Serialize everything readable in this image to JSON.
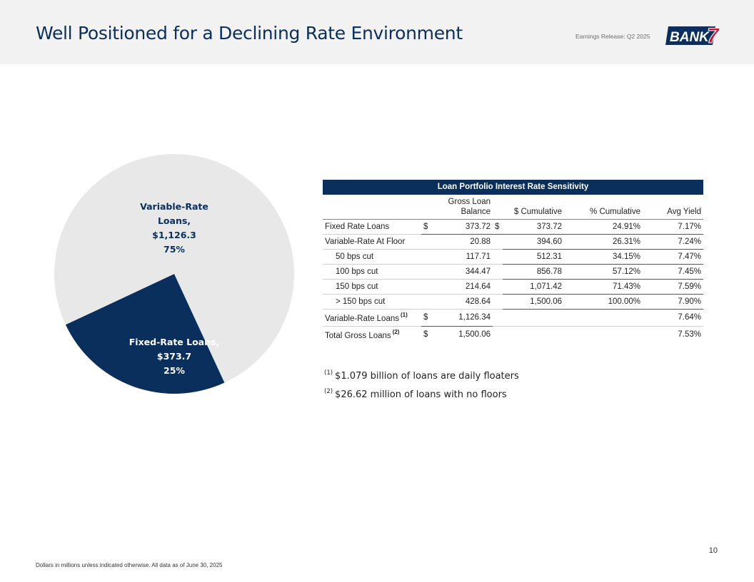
{
  "header": {
    "title": "Well Positioned for a Declining Rate Environment",
    "release": "Earnings Release: Q2 2025",
    "logo_text": "BANK",
    "logo_mark": "7",
    "brand_color": "#0a2f5c"
  },
  "chart_data": {
    "type": "pie",
    "slices": [
      {
        "name": "Variable-Rate Loans",
        "value": 1126.3,
        "percent": 75,
        "label_lines": [
          "Variable-Rate",
          "Loans,",
          "$1,126.3",
          "75%"
        ],
        "color": "#e8e8e8"
      },
      {
        "name": "Fixed-Rate Loans",
        "value": 373.7,
        "percent": 25,
        "label_lines": [
          "Fixed-Rate Loans,",
          "$373.7",
          "25%"
        ],
        "color": "#0a2f5c"
      }
    ]
  },
  "table": {
    "title": "Loan Portfolio Interest Rate Sensitivity",
    "columns": {
      "balance_line1": "Gross Loan",
      "balance_line2": "Balance",
      "cumulative": "$ Cumulative",
      "pct_cumulative": "% Cumulative",
      "avg_yield": "Avg Yield"
    },
    "rows": [
      {
        "label": "Fixed Rate Loans",
        "bal_sym": "$",
        "balance": "373.72",
        "cum_sym": "$",
        "cumulative": "373.72",
        "pct": "24.91%",
        "yield": "7.17%"
      },
      {
        "label": "Variable-Rate At Floor",
        "bal_sym": "",
        "balance": "20.88",
        "cum_sym": "",
        "cumulative": "394.60",
        "pct": "26.31%",
        "yield": "7.24%"
      },
      {
        "label": "50 bps cut",
        "bal_sym": "",
        "balance": "117.71",
        "cum_sym": "",
        "cumulative": "512.31",
        "pct": "34.15%",
        "yield": "7.47%"
      },
      {
        "label": "100 bps cut",
        "bal_sym": "",
        "balance": "344.47",
        "cum_sym": "",
        "cumulative": "856.78",
        "pct": "57.12%",
        "yield": "7.45%"
      },
      {
        "label": "150 bps cut",
        "bal_sym": "",
        "balance": "214.64",
        "cum_sym": "",
        "cumulative": "1,071.42",
        "pct": "71.43%",
        "yield": "7.59%"
      },
      {
        "label": "> 150 bps cut",
        "bal_sym": "",
        "balance": "428.64",
        "cum_sym": "",
        "cumulative": "1,500.06",
        "pct": "100.00%",
        "yield": "7.90%"
      }
    ],
    "variable": {
      "label": "Variable-Rate Loans",
      "note": "(1)",
      "sym": "$",
      "balance": "1,126.34",
      "yield": "7.64%"
    },
    "total": {
      "label": "Total Gross Loans",
      "note": "(2)",
      "sym": "$",
      "balance": "1,500.06",
      "yield": "7.53%"
    }
  },
  "notes": [
    {
      "mark": "(1)",
      "text": "$1.079 billion of loans are daily floaters"
    },
    {
      "mark": "(2)",
      "text": "$26.62 million of loans with no floors"
    }
  ],
  "footer": {
    "text": "Dollars in millions unless indicated otherwise. All data as of June 30, 2025",
    "page": "10"
  }
}
